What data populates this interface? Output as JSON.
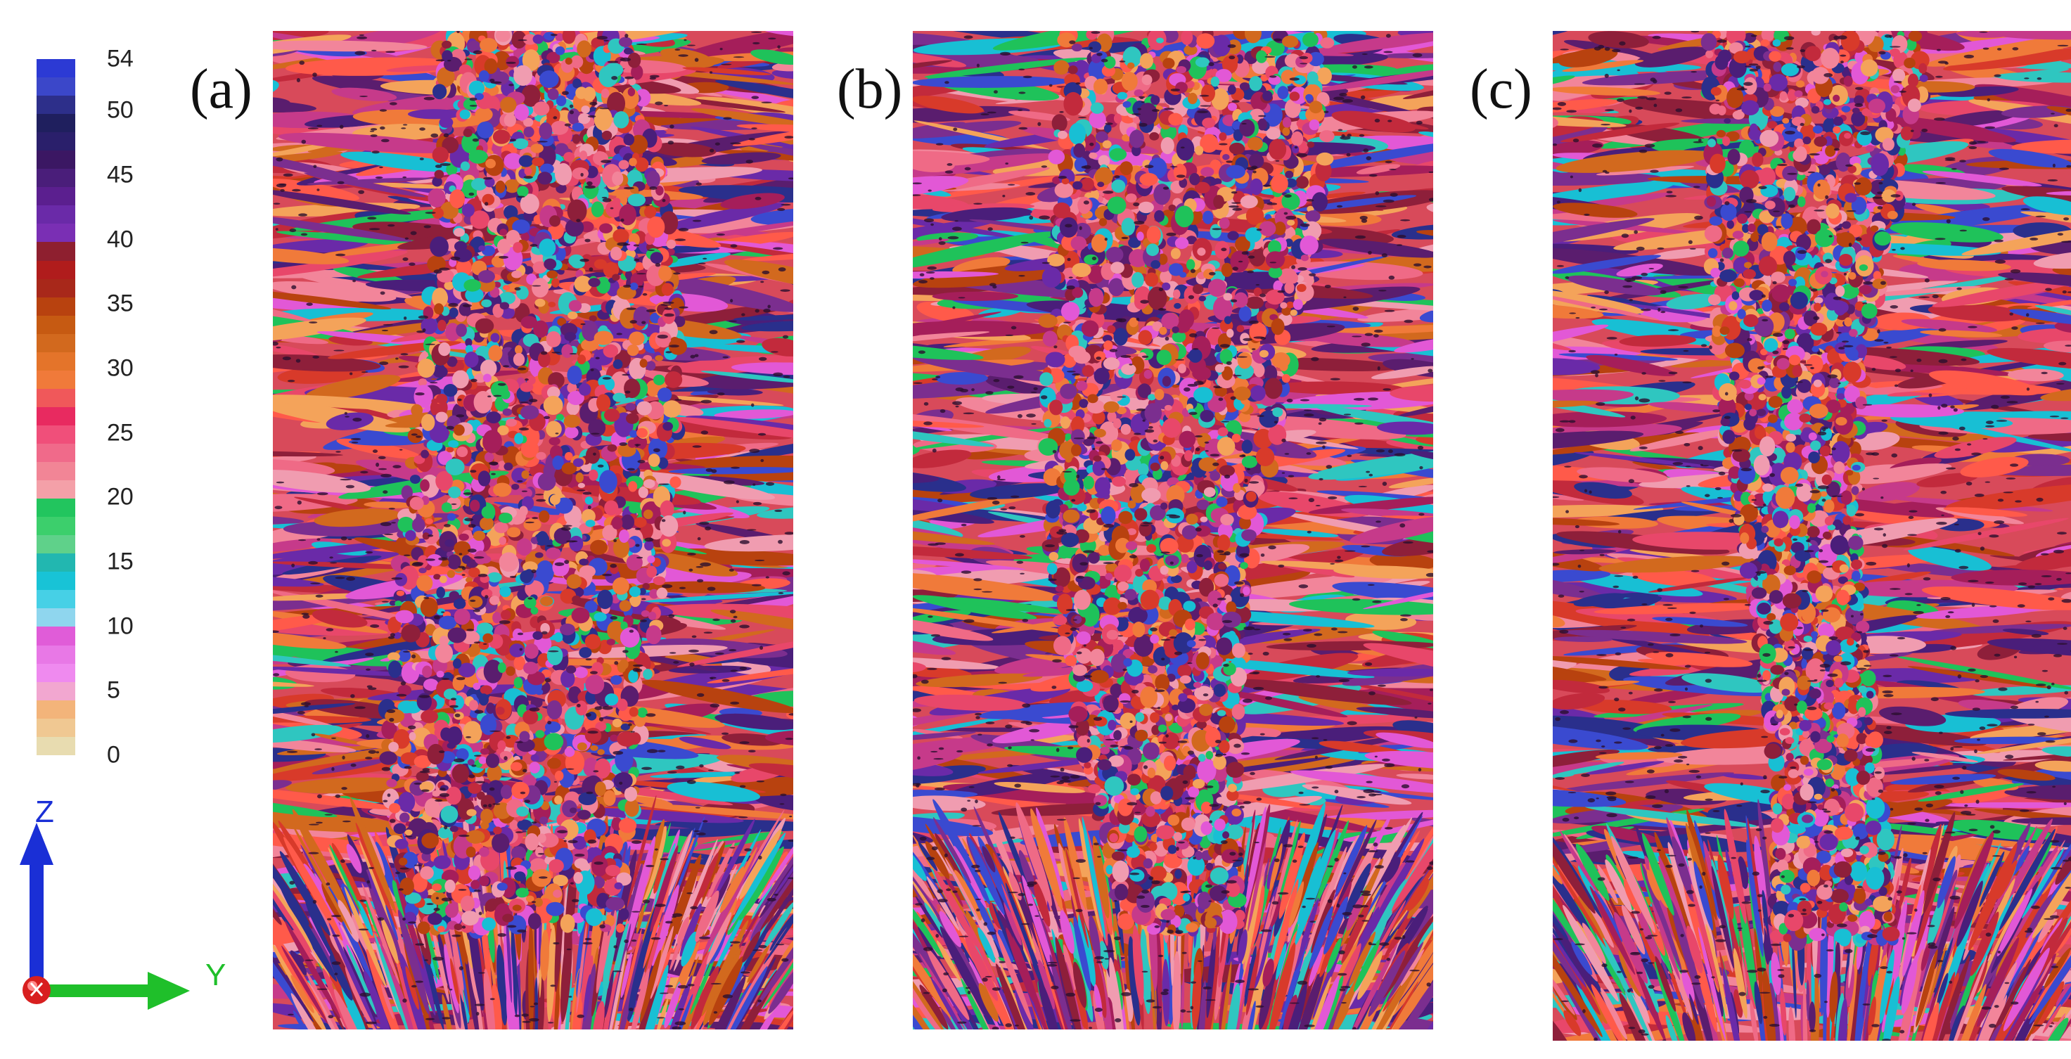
{
  "legend": {
    "ticks": [
      "54",
      "50",
      "45",
      "40",
      "35",
      "30",
      "25",
      "20",
      "15",
      "10",
      "5",
      "0"
    ],
    "tick_values": [
      54,
      50,
      45,
      40,
      35,
      30,
      25,
      20,
      15,
      10,
      5,
      0
    ],
    "min": 0,
    "max": 54,
    "colors": [
      "#2c3ad4",
      "#3b47c9",
      "#2d2f8a",
      "#1f1f5e",
      "#2a1f6b",
      "#3b1763",
      "#4a1e7a",
      "#5b1f8f",
      "#6a2aa8",
      "#7a2fb4",
      "#8e1f2f",
      "#b01c1c",
      "#a8281a",
      "#b8420f",
      "#c65a12",
      "#d2691e",
      "#e4742a",
      "#f07a3a",
      "#f0585a",
      "#e82a60",
      "#f04f7a",
      "#f06a8a",
      "#f28596",
      "#f4a0a8",
      "#22c55e",
      "#3ccf6c",
      "#5fd18a",
      "#22b7b0",
      "#18c3d6",
      "#46d0e6",
      "#8fd6ee",
      "#e05cd8",
      "#e878e6",
      "#ef8aef",
      "#f2a7d0",
      "#f3b47a",
      "#f0c892",
      "#e8dcb0"
    ]
  },
  "panels": [
    {
      "label": "(a)"
    },
    {
      "label": "(b)"
    },
    {
      "label": "(c)"
    }
  ],
  "microstructure": {
    "palette": [
      "#e8476a",
      "#f07a3a",
      "#d83a2a",
      "#c22a3c",
      "#f2859a",
      "#2a2f8c",
      "#6a2aa8",
      "#5a1d6e",
      "#1fc25a",
      "#18bfd4",
      "#2fc6c0",
      "#e258d6",
      "#f09cb0",
      "#b8420f",
      "#8e1f3a",
      "#3a4ad0",
      "#ef6a86",
      "#d2691e",
      "#a51e5a",
      "#c63a8a",
      "#f4a35a",
      "#7b2e8f",
      "#ff5a4a",
      "#4a1e7a"
    ]
  },
  "triad": {
    "z_label": "Z",
    "y_label": "Y",
    "x_label": "X",
    "z_color": "#1a2fd6",
    "y_color": "#1fbf2a",
    "x_color": "#d81f1f"
  }
}
